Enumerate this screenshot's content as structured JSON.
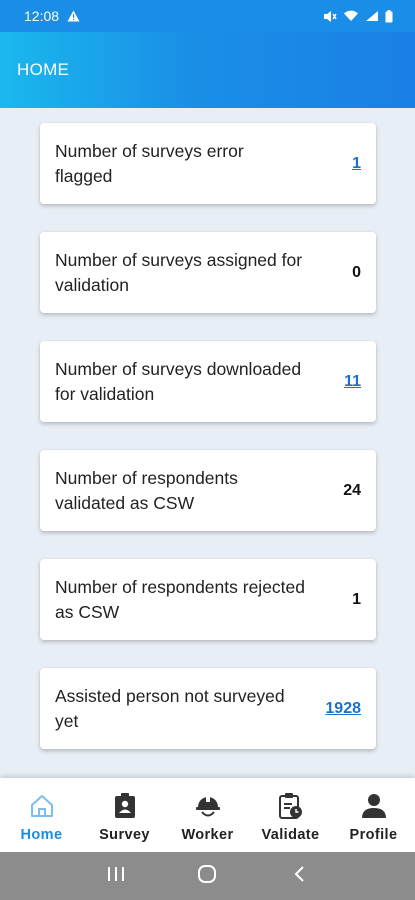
{
  "status_bar": {
    "time": "12:08",
    "icons": [
      "alert-icon",
      "mute-icon",
      "wifi-icon",
      "signal-icon",
      "battery-icon"
    ]
  },
  "header": {
    "title": "HOME"
  },
  "cards": [
    {
      "label": "Number of surveys error flagged",
      "value": "1",
      "is_link": true
    },
    {
      "label": "Number of surveys assigned for validation",
      "value": "0",
      "is_link": false
    },
    {
      "label": "Number of surveys downloaded for validation",
      "value": "11",
      "is_link": true
    },
    {
      "label": "Number of respondents validated as CSW",
      "value": "24",
      "is_link": false
    },
    {
      "label": "Number of respondents rejected as CSW",
      "value": "1",
      "is_link": false
    },
    {
      "label": "Assisted person not surveyed yet",
      "value": "1928",
      "is_link": true
    }
  ],
  "bottom_nav": {
    "items": [
      {
        "label": "Home",
        "icon": "home-icon",
        "active": true
      },
      {
        "label": "Survey",
        "icon": "clipboard-person-icon",
        "active": false
      },
      {
        "label": "Worker",
        "icon": "hard-hat-icon",
        "active": false
      },
      {
        "label": "Validate",
        "icon": "clipboard-clock-icon",
        "active": false
      },
      {
        "label": "Profile",
        "icon": "person-icon",
        "active": false
      }
    ]
  },
  "colors": {
    "primary": "#1a8de6",
    "link": "#1a73c8",
    "background": "#e8eef5",
    "android_nav": "#8c8c8c"
  }
}
